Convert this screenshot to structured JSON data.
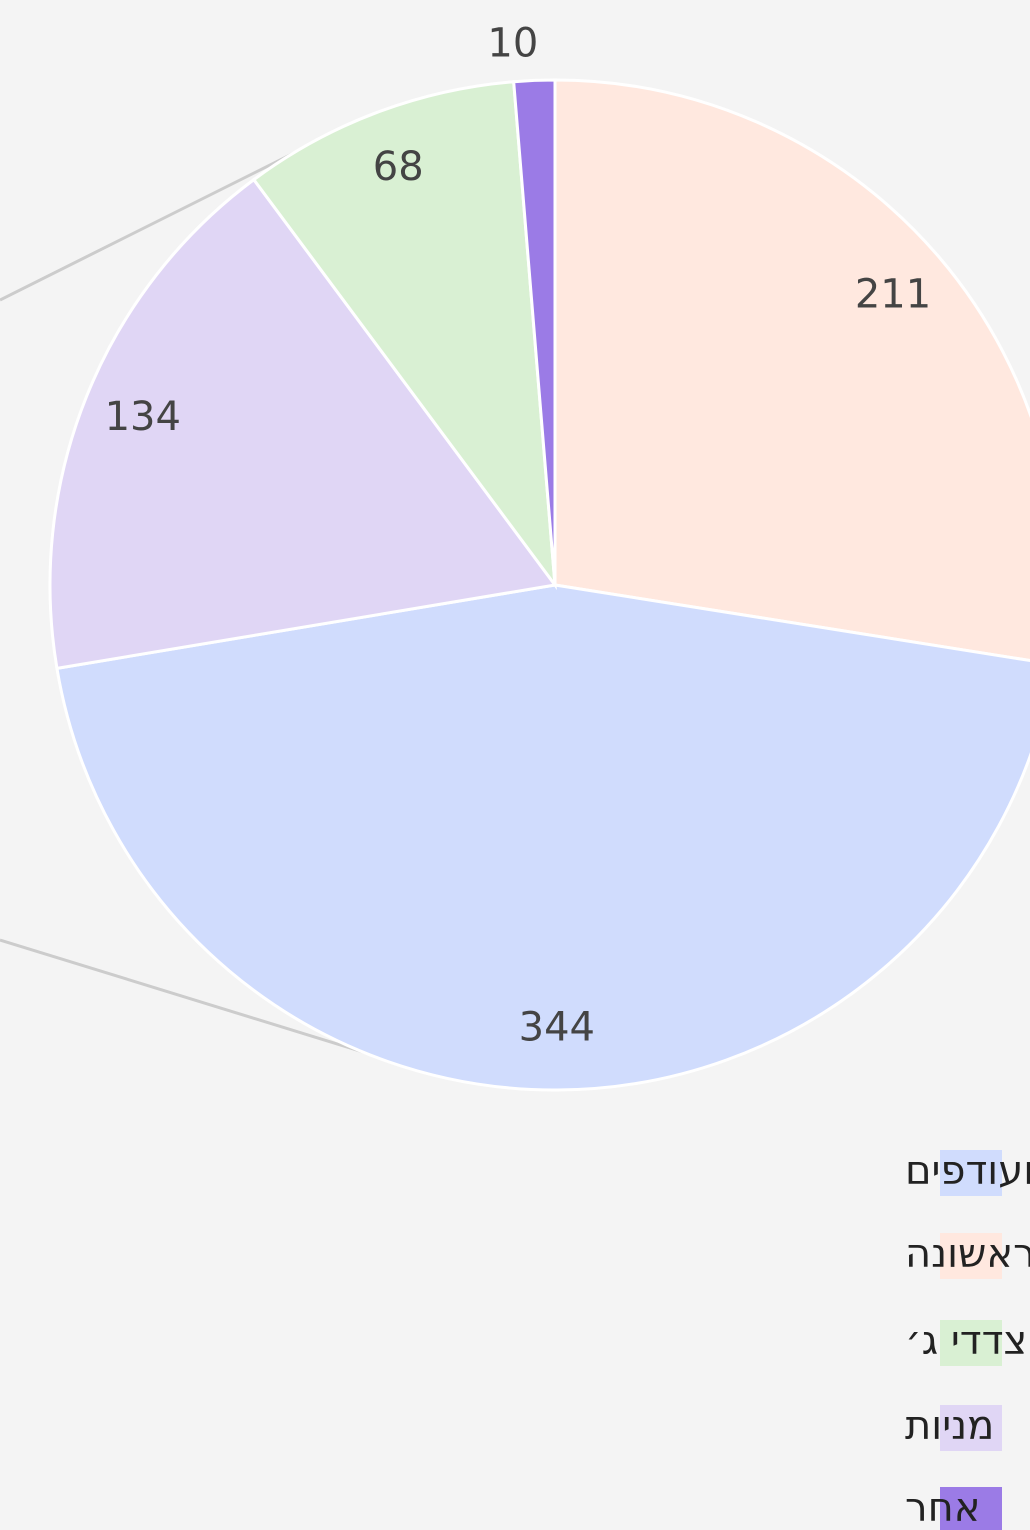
{
  "chart_data": {
    "type": "pie",
    "categories": [
      "נדל״ן משכנתא דרגה שניה ועודפים",
      "נדל״ן משכנתא דרגה ראשונה",
      "ערבויות צדדי ג׳",
      "מניות",
      "אחר"
    ],
    "values": [
      344,
      211,
      68,
      134,
      10
    ],
    "colors": [
      "#d0dcfd",
      "#ffe8df",
      "#d9f0d3",
      "#e0d6f5",
      "#9b7be6"
    ]
  }
}
